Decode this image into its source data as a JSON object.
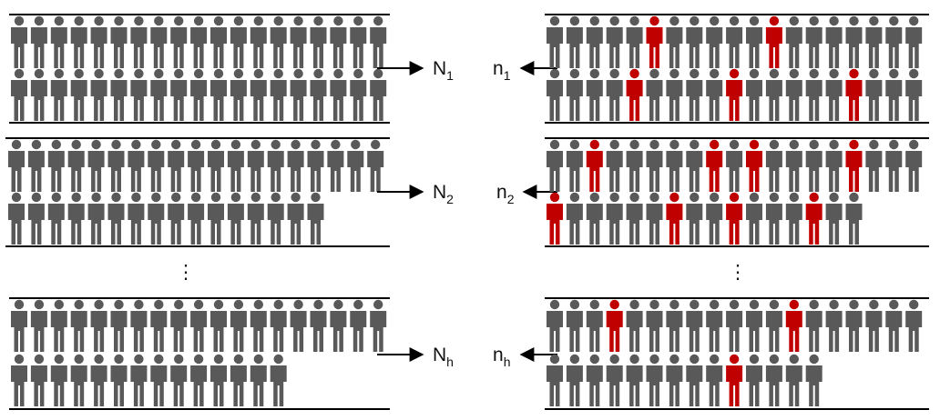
{
  "colors": {
    "person": "#595959",
    "sampled": "#c00000",
    "line": "#000000"
  },
  "person_icon": "person-icon",
  "strata": [
    {
      "population_label": {
        "main": "N",
        "sub": "1"
      },
      "sample_label": {
        "main": "n",
        "sub": "1"
      },
      "population_rows": [
        19,
        19
      ],
      "sample_rows": [
        19,
        19
      ],
      "sampled_positions": [
        [
          5,
          11
        ],
        [
          4,
          9,
          15
        ]
      ]
    },
    {
      "population_label": {
        "main": "N",
        "sub": "2"
      },
      "sample_label": {
        "main": "n",
        "sub": "2"
      },
      "population_rows": [
        19,
        16
      ],
      "sample_rows": [
        19,
        16
      ],
      "sampled_positions": [
        [
          2,
          8,
          10,
          15
        ],
        [
          0,
          6,
          9,
          13
        ]
      ]
    },
    {
      "population_label": {
        "main": "N",
        "sub": "h"
      },
      "sample_label": {
        "main": "n",
        "sub": "h"
      },
      "population_rows": [
        19,
        14
      ],
      "sample_rows": [
        19,
        14
      ],
      "sampled_positions": [
        [
          3,
          12
        ],
        [
          9
        ]
      ]
    }
  ],
  "ellipsis": "⋮"
}
